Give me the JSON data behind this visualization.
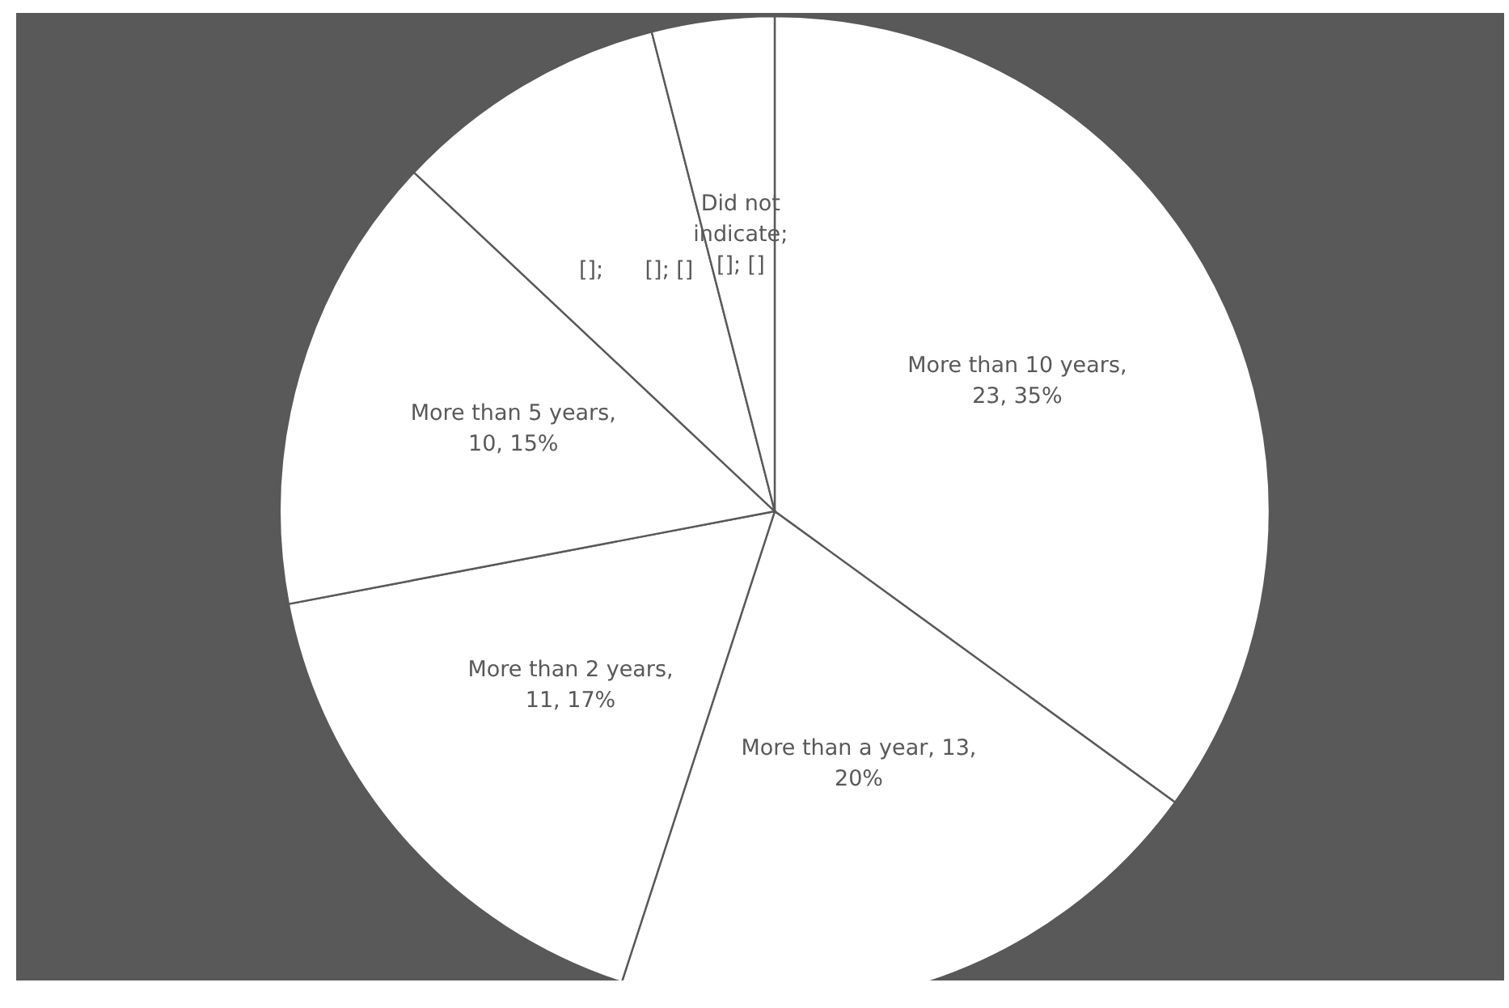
{
  "chart_data": {
    "type": "pie",
    "categories": [
      "More than 10 years",
      "More than a year",
      "More than 2 years",
      "More than 5 years",
      null,
      "Did not indicate"
    ],
    "values": [
      35,
      20,
      17,
      15,
      9,
      4
    ],
    "colors": [
      "#ffffff",
      "#ffffff",
      "#ffffff",
      "#ffffff",
      "#ffffff",
      "#ffffff"
    ],
    "value_labels": [
      ",\n23, 35%",
      ", 13,\n20%",
      ",\n11, 17%",
      ",\n10, 15%",
      "[];      []; []",
      ";\n[]; []"
    ]
  }
}
